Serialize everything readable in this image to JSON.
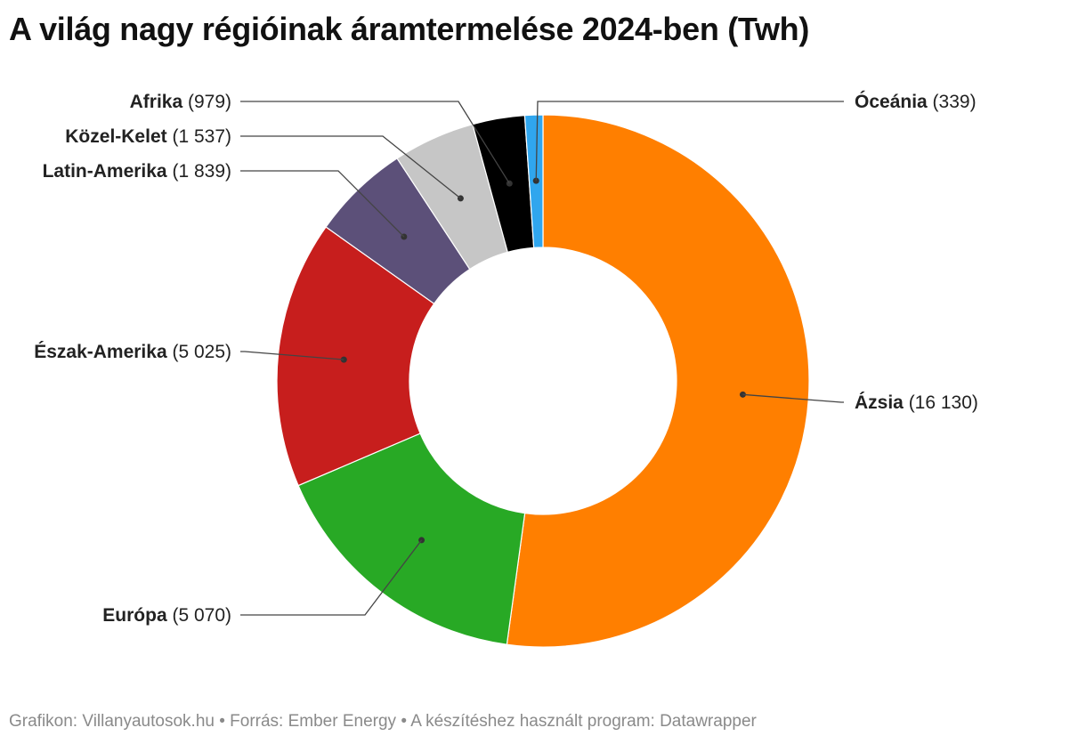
{
  "title": "A világ nagy régióinak áramtermelése 2024-ben (Twh)",
  "footer": "Grafikon: Villanyautosok.hu • Forrás: Ember Energy • A készítéshez használt program: Datawrapper",
  "chart_data": {
    "type": "pie",
    "variant": "donut",
    "title": "A világ nagy régióinak áramtermelése 2024-ben (Twh)",
    "slices": [
      {
        "name": "Ázsia",
        "value": 16130,
        "display": "16 130",
        "color": "#ff7f00"
      },
      {
        "name": "Európa",
        "value": 5070,
        "display": "5 070",
        "color": "#28a925"
      },
      {
        "name": "Észak-Amerika",
        "value": 5025,
        "display": "5 025",
        "color": "#c71e1d"
      },
      {
        "name": "Latin-Amerika",
        "value": 1839,
        "display": "1 839",
        "color": "#5c5079"
      },
      {
        "name": "Közel-Kelet",
        "value": 1537,
        "display": "1 537",
        "color": "#c6c6c6"
      },
      {
        "name": "Afrika",
        "value": 979,
        "display": "979",
        "color": "#000000"
      },
      {
        "name": "Óceánia",
        "value": 339,
        "display": "339",
        "color": "#30a6ee"
      }
    ]
  }
}
